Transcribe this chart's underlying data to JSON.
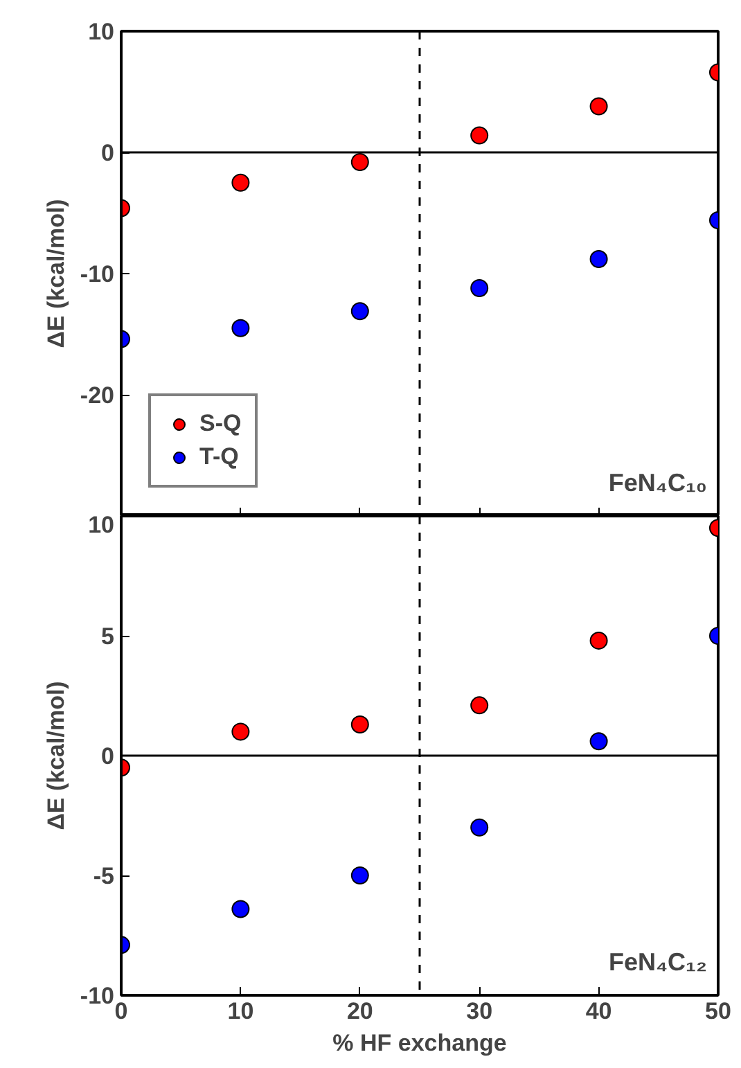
{
  "chart_data": [
    {
      "type": "scatter",
      "ylabel": "ΔE (kcal/mol)",
      "x": [
        0,
        10,
        20,
        30,
        40,
        50
      ],
      "xlim": [
        0,
        50
      ],
      "xticks": [
        0,
        10,
        20,
        30,
        40,
        50
      ],
      "ylim": [
        -30,
        10
      ],
      "yticks": [
        -20,
        -10,
        0,
        10
      ],
      "tick_labels": "y",
      "marker": "circle",
      "grid": false,
      "legend": "bottom left",
      "series": [
        {
          "name": "S-Q",
          "color": "#ff0000",
          "values": [
            -4.6,
            -2.5,
            -0.8,
            1.4,
            3.8,
            6.6
          ]
        },
        {
          "name": "T-Q",
          "color": "#0000ff",
          "values": [
            -15.4,
            -14.5,
            -13.1,
            -11.2,
            -8.8,
            -5.6
          ]
        }
      ],
      "ref_lines": [
        {
          "axis": "y",
          "value": 0,
          "line_style": "solid",
          "color": "#000000"
        },
        {
          "axis": "x",
          "value": 25,
          "line_style": "dashed",
          "color": "#000000"
        }
      ],
      "annotations": [
        "FeN₄C₁₀"
      ]
    },
    {
      "type": "scatter",
      "xlabel": "% HF exchange",
      "ylabel": "ΔE (kcal/mol)",
      "x": [
        0,
        10,
        20,
        30,
        40,
        50
      ],
      "xlim": [
        0,
        50
      ],
      "xticks": [
        0,
        10,
        20,
        30,
        40,
        50
      ],
      "ylim": [
        -10,
        10
      ],
      "yticks": [
        -10,
        -5,
        0,
        5,
        10
      ],
      "marker": "circle",
      "grid": false,
      "series": [
        {
          "color": "#ff0000",
          "values": [
            -0.5,
            1.0,
            1.3,
            2.1,
            4.8,
            9.5
          ]
        },
        {
          "color": "#0000ff",
          "values": [
            -7.9,
            -6.4,
            -5.0,
            -3.0,
            0.6,
            5.0
          ]
        }
      ],
      "ref_lines": [
        {
          "axis": "y",
          "value": 0,
          "line_style": "solid",
          "color": "#000000"
        },
        {
          "axis": "x",
          "value": 25,
          "line_style": "dashed",
          "color": "#000000"
        }
      ],
      "annotations": [
        "FeN₄C₁₂"
      ]
    }
  ]
}
